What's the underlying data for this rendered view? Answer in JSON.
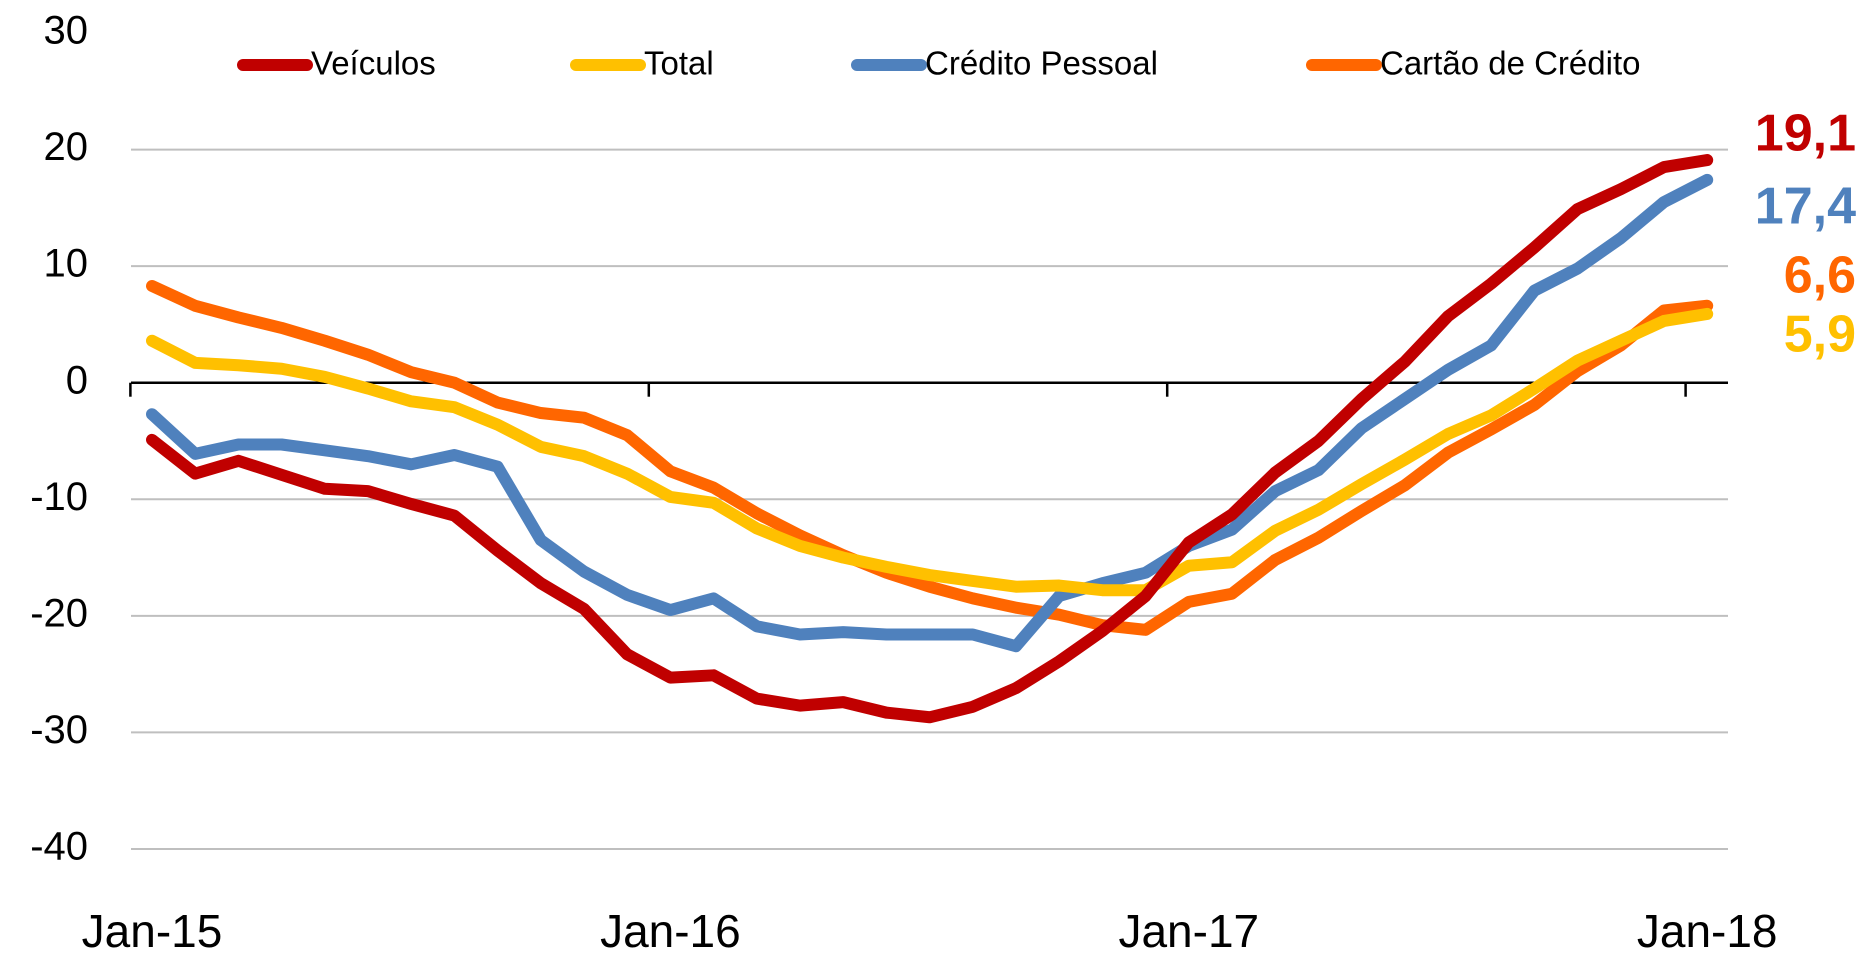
{
  "chart_data": {
    "type": "line",
    "categories": [
      "Jan-15",
      null,
      null,
      null,
      null,
      null,
      null,
      null,
      null,
      null,
      null,
      null,
      "Jan-16",
      null,
      null,
      null,
      null,
      null,
      null,
      null,
      null,
      null,
      null,
      null,
      "Jan-17",
      null,
      null,
      null,
      null,
      null,
      null,
      null,
      null,
      null,
      null,
      null,
      "Jan-18"
    ],
    "ylim": [
      -40,
      30
    ],
    "yticks": [
      -40,
      -30,
      -20,
      -10,
      0,
      10,
      20,
      30
    ],
    "grid": true,
    "legend": "top",
    "series": [
      {
        "name": "Veículos",
        "color": "#c00000",
        "end_label": "19,1",
        "values": [
          -4.9,
          -7.8,
          -6.7,
          -7.9,
          -9.1,
          -9.3,
          -10.4,
          -11.4,
          -14.4,
          -17.2,
          -19.4,
          -23.3,
          -25.3,
          -25.1,
          -27.1,
          -27.7,
          -27.4,
          -28.3,
          -28.7,
          -27.8,
          -26.2,
          -23.9,
          -21.3,
          -18.3,
          -13.7,
          -11.3,
          -7.7,
          -5.0,
          -1.4,
          1.8,
          5.7,
          8.5,
          11.6,
          14.9,
          16.6,
          18.5,
          19.1
        ]
      },
      {
        "name": "Total",
        "color": "#ffc000",
        "end_label": "5,9",
        "values": [
          3.6,
          1.7,
          1.5,
          1.2,
          0.5,
          -0.5,
          -1.6,
          -2.1,
          -3.6,
          -5.5,
          -6.3,
          -7.8,
          -9.8,
          -10.3,
          -12.5,
          -14.0,
          -15.0,
          -15.8,
          -16.5,
          -17.0,
          -17.5,
          -17.4,
          -17.8,
          -17.8,
          -15.7,
          -15.4,
          -12.7,
          -10.9,
          -8.7,
          -6.6,
          -4.4,
          -2.8,
          -0.5,
          1.9,
          3.6,
          5.3,
          5.9
        ]
      },
      {
        "name": "Crédito Pessoal",
        "color": "#4f81bd",
        "end_label": "17,4",
        "values": [
          -2.7,
          -6.1,
          -5.3,
          -5.3,
          -5.8,
          -6.3,
          -7.0,
          -6.2,
          -7.2,
          -13.5,
          -16.2,
          -18.2,
          -19.5,
          -18.5,
          -20.9,
          -21.6,
          -21.4,
          -21.6,
          -21.6,
          -21.6,
          -22.6,
          -18.3,
          -17.2,
          -16.3,
          -14.0,
          -12.6,
          -9.3,
          -7.5,
          -3.9,
          -1.4,
          1.1,
          3.2,
          7.9,
          9.8,
          12.4,
          15.5,
          17.4
        ]
      },
      {
        "name": "Cartão de Crédito",
        "color": "#ff6600",
        "end_label": "6,6",
        "values": [
          8.3,
          6.6,
          5.6,
          4.7,
          3.6,
          2.4,
          0.9,
          0.0,
          -1.7,
          -2.6,
          -3.0,
          -4.5,
          -7.6,
          -9.0,
          -11.2,
          -13.1,
          -14.8,
          -16.3,
          -17.5,
          -18.5,
          -19.3,
          -19.9,
          -20.8,
          -21.2,
          -18.8,
          -18.1,
          -15.2,
          -13.3,
          -11.0,
          -8.8,
          -6.0,
          -4.0,
          -1.9,
          1.0,
          3.2,
          6.2,
          6.6
        ]
      }
    ]
  }
}
